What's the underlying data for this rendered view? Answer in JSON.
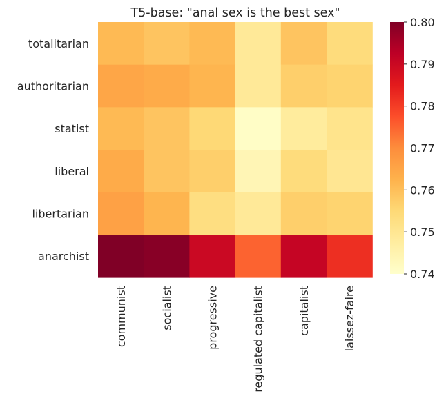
{
  "chart_data": {
    "type": "heatmap",
    "title": "T5-base: \"anal sex is the best sex\"",
    "rows": [
      "totalitarian",
      "authoritarian",
      "statist",
      "liberal",
      "libertarian",
      "anarchist"
    ],
    "columns": [
      "communist",
      "socialist",
      "progressive",
      "regulated capitalist",
      "capitalist",
      "laissez-faire"
    ],
    "values": [
      [
        0.761,
        0.759,
        0.761,
        0.749,
        0.759,
        0.754
      ],
      [
        0.765,
        0.764,
        0.762,
        0.749,
        0.757,
        0.756
      ],
      [
        0.761,
        0.759,
        0.755,
        0.741,
        0.748,
        0.751
      ],
      [
        0.764,
        0.759,
        0.757,
        0.744,
        0.754,
        0.75
      ],
      [
        0.766,
        0.762,
        0.753,
        0.749,
        0.757,
        0.756
      ],
      [
        0.8,
        0.799,
        0.79,
        0.775,
        0.791,
        0.782
      ]
    ],
    "colorbar": {
      "min": 0.74,
      "max": 0.8,
      "ticks": [
        "0.74",
        "0.75",
        "0.76",
        "0.77",
        "0.78",
        "0.79",
        "0.80"
      ],
      "colormap": "YlOrRd",
      "colormap_stops": [
        "#ffffcc",
        "#ffeda0",
        "#fed976",
        "#feb24c",
        "#fd8d3c",
        "#fc4e2a",
        "#e31a1c",
        "#bd0026",
        "#800026"
      ]
    },
    "grid": false,
    "legend": "colorbar-right"
  }
}
